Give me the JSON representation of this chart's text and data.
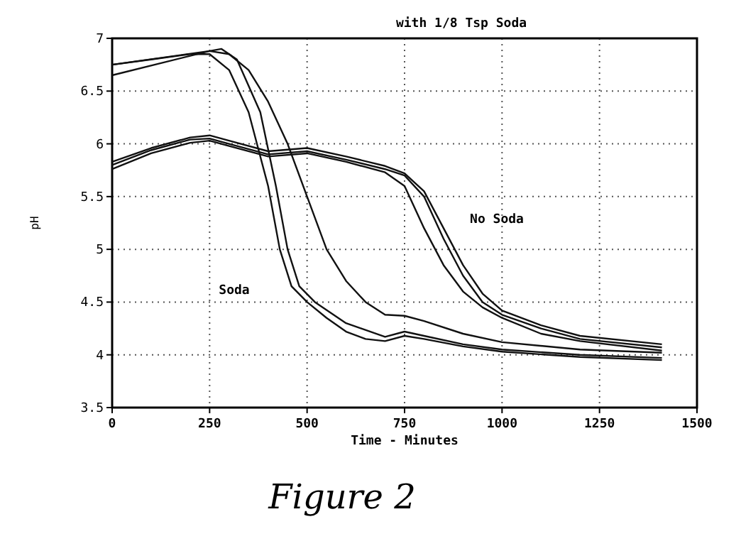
{
  "chart_data": {
    "type": "line",
    "title": "with 1/8 Tsp Soda",
    "xlabel": "Time - Minutes",
    "ylabel": "pH",
    "xlim": [
      0,
      1500
    ],
    "xticks": [
      0,
      250,
      500,
      750,
      1000,
      1250,
      1500
    ],
    "ylim": [
      3.5,
      7
    ],
    "yticks": [
      3.5,
      4,
      4.5,
      5,
      5.5,
      6,
      6.5,
      7
    ],
    "grid": true,
    "marker": "none",
    "line_style": "solid",
    "annotations": [
      "Soda",
      "No Soda",
      "Figure 2"
    ],
    "series": [
      {
        "color": "#111111",
        "x": [
          0,
          100,
          200,
          250,
          300,
          350,
          400,
          430,
          460,
          500,
          550,
          600,
          650,
          700,
          750,
          800,
          900,
          1000,
          1200,
          1410
        ],
        "values": [
          6.75,
          6.8,
          6.85,
          6.85,
          6.7,
          6.3,
          5.6,
          5.0,
          4.65,
          4.5,
          4.35,
          4.22,
          4.15,
          4.13,
          4.18,
          4.15,
          4.08,
          4.03,
          3.98,
          3.95
        ]
      },
      {
        "color": "#111111",
        "x": [
          0,
          250,
          280,
          320,
          380,
          420,
          450,
          480,
          520,
          600,
          700,
          750,
          800,
          900,
          1000,
          1200,
          1410
        ],
        "values": [
          6.65,
          6.88,
          6.9,
          6.8,
          6.3,
          5.6,
          5.0,
          4.65,
          4.5,
          4.3,
          4.17,
          4.22,
          4.18,
          4.1,
          4.05,
          4.0,
          3.97
        ]
      },
      {
        "color": "#111111",
        "x": [
          0,
          250,
          300,
          350,
          400,
          450,
          500,
          550,
          600,
          650,
          700,
          750,
          800,
          900,
          1000,
          1200,
          1410
        ],
        "values": [
          6.75,
          6.88,
          6.85,
          6.7,
          6.4,
          6.0,
          5.5,
          5.0,
          4.7,
          4.5,
          4.38,
          4.37,
          4.32,
          4.2,
          4.12,
          4.05,
          4.02
        ]
      },
      {
        "color": "#111111",
        "x": [
          0,
          100,
          200,
          250,
          300,
          400,
          500,
          600,
          700,
          750,
          800,
          850,
          900,
          950,
          1000,
          1100,
          1200,
          1410
        ],
        "values": [
          5.76,
          5.91,
          6.01,
          6.03,
          5.98,
          5.88,
          5.91,
          5.83,
          5.73,
          5.6,
          5.2,
          4.85,
          4.6,
          4.45,
          4.35,
          4.2,
          4.13,
          4.04
        ]
      },
      {
        "color": "#111111",
        "x": [
          0,
          100,
          200,
          250,
          300,
          400,
          500,
          600,
          700,
          750,
          800,
          850,
          900,
          950,
          1000,
          1100,
          1200,
          1410
        ],
        "values": [
          5.8,
          5.94,
          6.04,
          6.05,
          6.0,
          5.9,
          5.93,
          5.85,
          5.76,
          5.7,
          5.5,
          5.1,
          4.75,
          4.5,
          4.38,
          4.25,
          4.15,
          4.07
        ]
      },
      {
        "color": "#111111",
        "x": [
          0,
          100,
          200,
          250,
          300,
          400,
          500,
          600,
          700,
          750,
          800,
          850,
          900,
          950,
          1000,
          1100,
          1200,
          1410
        ],
        "values": [
          5.83,
          5.96,
          6.06,
          6.08,
          6.03,
          5.93,
          5.96,
          5.88,
          5.79,
          5.72,
          5.55,
          5.2,
          4.85,
          4.58,
          4.42,
          4.28,
          4.18,
          4.1
        ]
      }
    ]
  }
}
